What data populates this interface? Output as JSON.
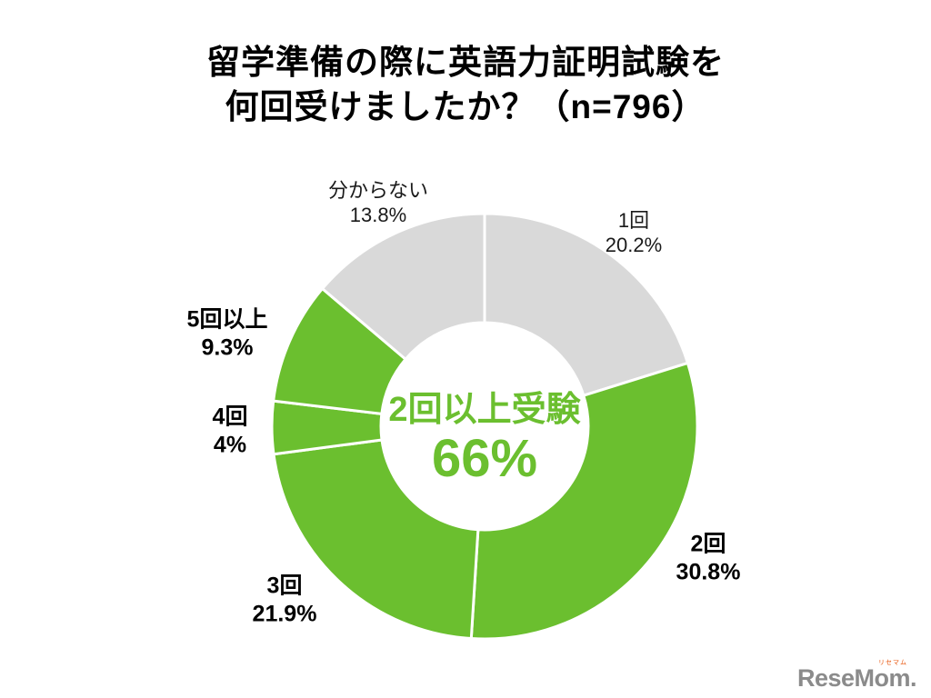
{
  "title": {
    "line1": "留学準備の際に英語力証明試験を",
    "line2": "何回受けましたか？（n=796）"
  },
  "chart_data": {
    "type": "pie",
    "donut": true,
    "title": "留学準備の際に英語力証明試験を何回受けましたか？（n=796）",
    "n": 796,
    "start_angle_deg": 0,
    "direction": "clockwise",
    "legend_position": "none",
    "colors": {
      "green": "#6BBF2F",
      "gray": "#D9D9D9",
      "divider": "#FFFFFF",
      "center_text": "#6BBF2F",
      "label_text": "#000000"
    },
    "slices": [
      {
        "label": "1回",
        "value": 20.2,
        "display": "20.2%",
        "color": "#D9D9D9",
        "label_bold": false
      },
      {
        "label": "2回",
        "value": 30.8,
        "display": "30.8%",
        "color": "#6BBF2F",
        "label_bold": true
      },
      {
        "label": "3回",
        "value": 21.9,
        "display": "21.9%",
        "color": "#6BBF2F",
        "label_bold": true
      },
      {
        "label": "4回",
        "value": 4,
        "display": "4%",
        "color": "#6BBF2F",
        "label_bold": true
      },
      {
        "label": "5回以上",
        "value": 9.3,
        "display": "9.3%",
        "color": "#6BBF2F",
        "label_bold": true
      },
      {
        "label": "分からない",
        "value": 13.8,
        "display": "13.8%",
        "color": "#D9D9D9",
        "label_bold": false
      }
    ],
    "center_label": {
      "line1": "2回以上受験",
      "line2": "66%",
      "color": "#6BBF2F"
    }
  },
  "logo": {
    "text": "ReseMom.",
    "ruby": "リセマム",
    "color": "#8B8B8B",
    "ruby_color": "#E8560D"
  }
}
